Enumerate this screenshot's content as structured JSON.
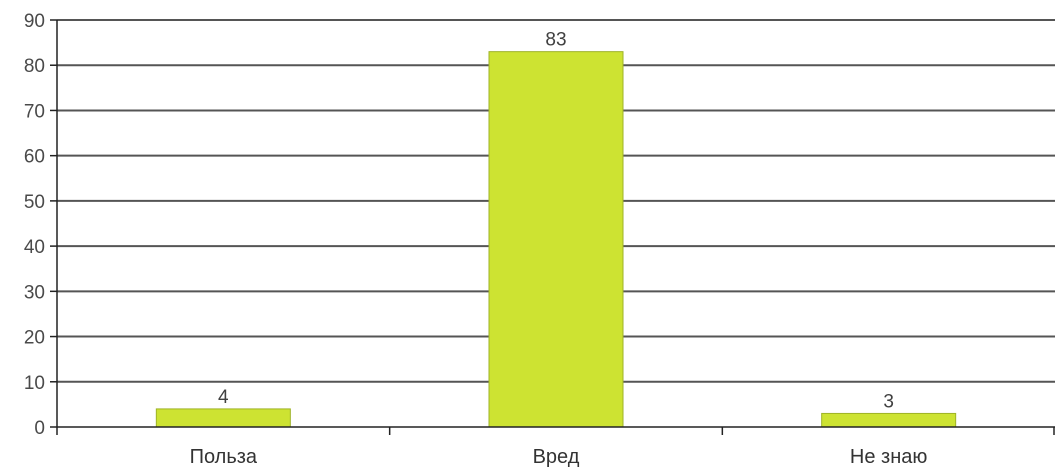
{
  "chart_data": {
    "type": "bar",
    "categories": [
      "Польза",
      "Вред",
      "Не знаю"
    ],
    "values": [
      4,
      83,
      3
    ],
    "data_labels": [
      "4",
      "83",
      "3"
    ],
    "title": "",
    "xlabel": "",
    "ylabel": "",
    "ylim": [
      0,
      90
    ],
    "yticks": [
      0,
      10,
      20,
      30,
      40,
      50,
      60,
      70,
      80,
      90
    ],
    "grid": true,
    "legend": "none",
    "colors": {
      "bar_fill": "#cde332",
      "bar_stroke": "#9eb326",
      "grid": "#555555",
      "axis": "#222222"
    }
  }
}
